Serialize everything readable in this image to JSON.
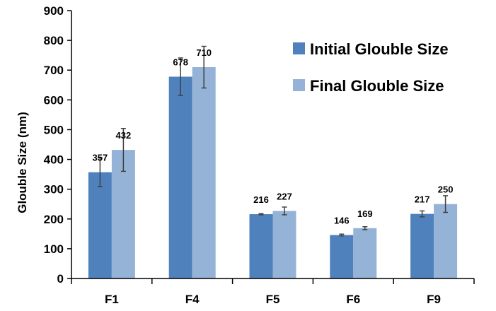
{
  "chart_data": {
    "type": "bar",
    "title": "",
    "xlabel": "",
    "ylabel": "Glouble Size (nm)",
    "ylim": [
      0,
      900
    ],
    "yticks": [
      0,
      100,
      200,
      300,
      400,
      500,
      600,
      700,
      800,
      900
    ],
    "categories": [
      "F1",
      "F4",
      "F5",
      "F6",
      "F9"
    ],
    "grid": false,
    "legend_position": "top-right",
    "series": [
      {
        "name": "Initial Glouble Size",
        "color": "#4f81bd",
        "values": [
          357,
          678,
          216,
          146,
          217
        ],
        "labels": [
          "357",
          "678",
          "216",
          "146",
          "217"
        ],
        "error": [
          48,
          63,
          2,
          3,
          10
        ]
      },
      {
        "name": "Final Glouble Size",
        "color": "#95b3d7",
        "values": [
          432,
          710,
          227,
          169,
          250
        ],
        "labels": [
          "432",
          "710",
          "227",
          "169",
          "250"
        ],
        "error": [
          72,
          70,
          13,
          5,
          28
        ]
      }
    ]
  }
}
